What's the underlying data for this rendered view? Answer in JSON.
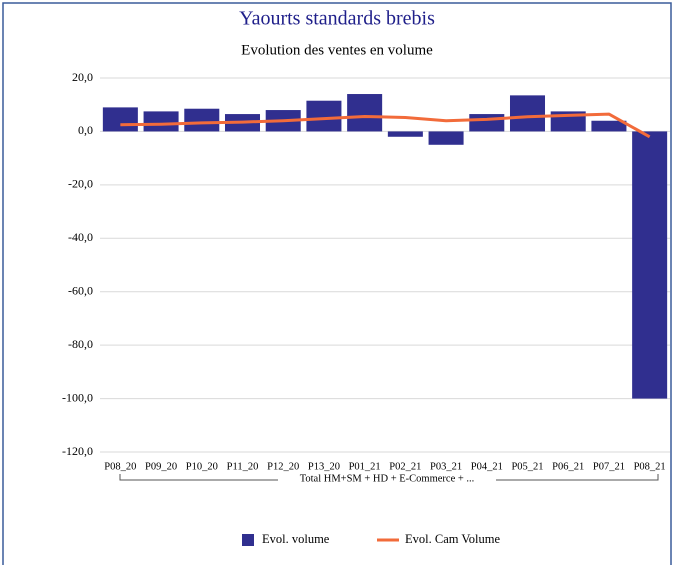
{
  "chart_data": {
    "type": "bar",
    "title": "Yaourts standards brebis",
    "subtitle": "Evolution des ventes en volume",
    "categories": [
      "P08_20",
      "P09_20",
      "P10_20",
      "P11_20",
      "P12_20",
      "P13_20",
      "P01_21",
      "P02_21",
      "P03_21",
      "P04_21",
      "P05_21",
      "P06_21",
      "P07_21",
      "P08_21"
    ],
    "group_label": "Total HM+SM + HD + E-Commerce + ...",
    "series": [
      {
        "name": "Evol. volume",
        "type": "bar",
        "color": "#302f8f",
        "values": [
          9,
          7.5,
          8.5,
          6.5,
          8,
          11.5,
          14,
          -2,
          -5,
          6.5,
          13.5,
          7.5,
          4,
          -100
        ]
      },
      {
        "name": "Evol. Cam Volume",
        "type": "line",
        "color": "#f26b3a",
        "values": [
          2.5,
          2.7,
          3.2,
          3.5,
          4,
          4.8,
          5.6,
          5.2,
          4,
          4.5,
          5.5,
          6,
          6.5,
          -2
        ]
      }
    ],
    "ylim": [
      -120,
      20
    ],
    "yticks": [
      {
        "value": 20,
        "label": "20,0"
      },
      {
        "value": 0,
        "label": "0,0"
      },
      {
        "value": -20,
        "label": "-20,0"
      },
      {
        "value": -40,
        "label": "-40,0"
      },
      {
        "value": -60,
        "label": "-60,0"
      },
      {
        "value": -80,
        "label": "-80,0"
      },
      {
        "value": -100,
        "label": "-100,0"
      },
      {
        "value": -120,
        "label": "-120,0"
      }
    ],
    "grid": true,
    "legend": "bottom"
  }
}
